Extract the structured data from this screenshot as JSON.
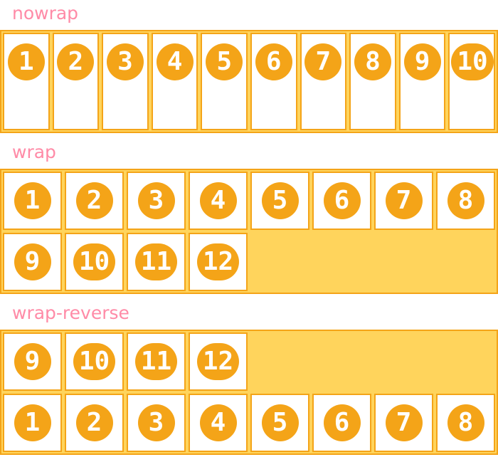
{
  "colors": {
    "accent_orange": "#F4A418",
    "container_yellow": "#FFD45C",
    "label_pink": "#FF8BA7",
    "item_bg": "#FFFFFF",
    "number_white": "#FFFFFF",
    "page_background": "#FFFFFF"
  },
  "sections": [
    {
      "id": "nowrap",
      "label": "nowrap",
      "flex_wrap": "nowrap",
      "items": [
        "1",
        "2",
        "3",
        "4",
        "5",
        "6",
        "7",
        "8",
        "9",
        "10"
      ]
    },
    {
      "id": "wrap",
      "label": "wrap",
      "flex_wrap": "wrap",
      "items": [
        "1",
        "2",
        "3",
        "4",
        "5",
        "6",
        "7",
        "8",
        "9",
        "10",
        "11",
        "12"
      ]
    },
    {
      "id": "wrap-reverse",
      "label": "wrap-reverse",
      "flex_wrap": "wrap-reverse",
      "items": [
        "1",
        "2",
        "3",
        "4",
        "5",
        "6",
        "7",
        "8",
        "9",
        "10",
        "11",
        "12"
      ]
    }
  ]
}
